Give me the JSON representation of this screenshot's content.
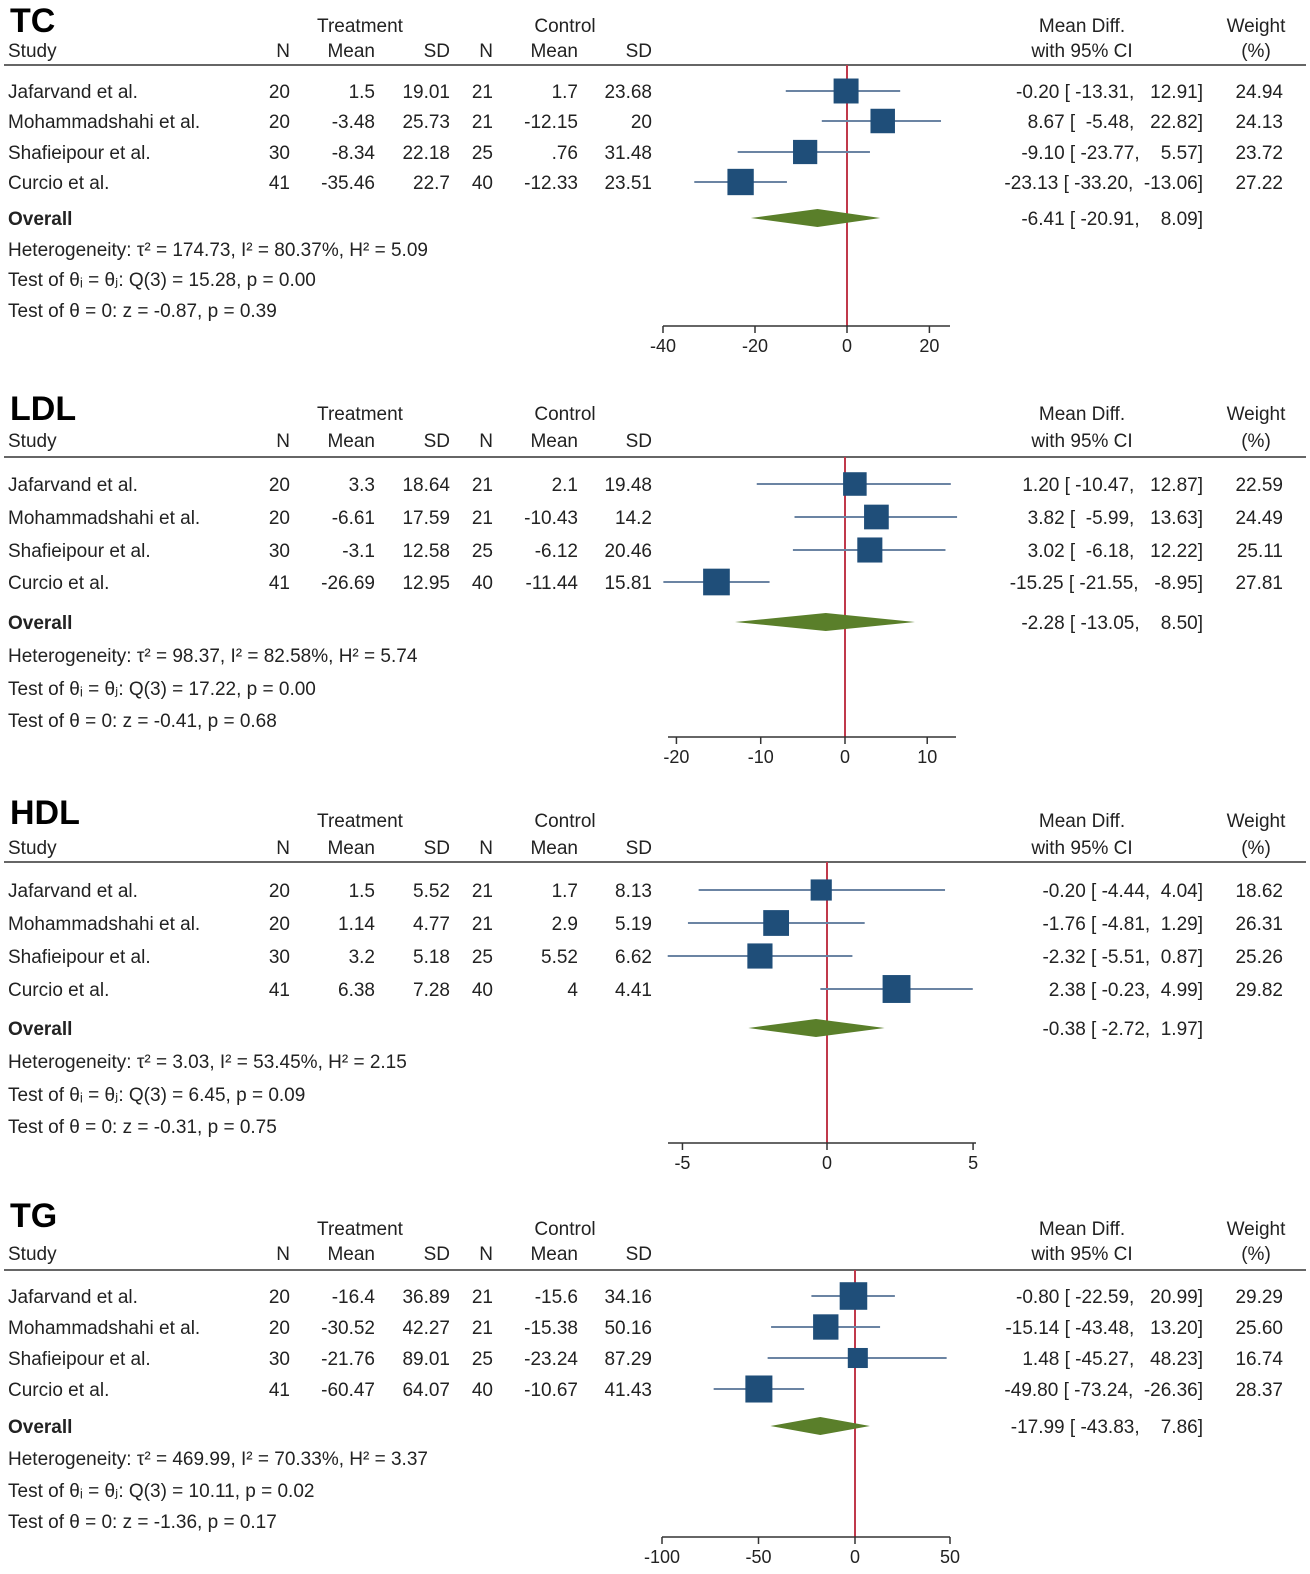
{
  "headers": {
    "study": "Study",
    "treatment": "Treatment",
    "control": "Control",
    "n": "N",
    "mean": "Mean",
    "sd": "SD",
    "mean_diff": "Mean Diff.",
    "ci": "with 95% CI",
    "weight": "Weight",
    "weight_unit": "(%)"
  },
  "colors": {
    "study_marker": "#1f4e79",
    "ci_line": "#6b84a3",
    "overall_diamond": "#5a7f2a",
    "null_line": "#c0394b"
  },
  "chart_data": [
    {
      "type": "forest",
      "title": "TC",
      "xlim": [
        -40,
        25
      ],
      "xticks": [
        -40,
        -20,
        0,
        20
      ],
      "xtick_labels": [
        "-40",
        "-20",
        "0",
        "20"
      ],
      "studies": [
        {
          "name": "Jafarvand et al.",
          "tN": "20",
          "tMean": "1.5",
          "tSD": "19.01",
          "cN": "21",
          "cMean": "1.7",
          "cSD": "23.68",
          "md": -0.2,
          "lo": -13.31,
          "hi": 12.91,
          "ci_text": "-0.20 [ -13.31,   12.91]",
          "weight": 24.94,
          "weight_text": "24.94"
        },
        {
          "name": "Mohammadshahi et al.",
          "tN": "20",
          "tMean": "-3.48",
          "tSD": "25.73",
          "cN": "21",
          "cMean": "-12.15",
          "cSD": "20",
          "md": 8.67,
          "lo": -5.48,
          "hi": 22.82,
          "ci_text": "8.67 [  -5.48,   22.82]",
          "weight": 24.13,
          "weight_text": "24.13"
        },
        {
          "name": "Shafieipour et al.",
          "tN": "30",
          "tMean": "-8.34",
          "tSD": "22.18",
          "cN": "25",
          "cMean": ".76",
          "cSD": "31.48",
          "md": -9.1,
          "lo": -23.77,
          "hi": 5.57,
          "ci_text": "-9.10 [ -23.77,    5.57]",
          "weight": 23.72,
          "weight_text": "23.72"
        },
        {
          "name": "Curcio et al.",
          "tN": "41",
          "tMean": "-35.46",
          "tSD": "22.7",
          "cN": "40",
          "cMean": "-12.33",
          "cSD": "23.51",
          "md": -23.13,
          "lo": -33.2,
          "hi": -13.06,
          "ci_text": "-23.13 [ -33.20,  -13.06]",
          "weight": 27.22,
          "weight_text": "27.22"
        }
      ],
      "overall": {
        "label": "Overall",
        "md": -6.41,
        "lo": -20.91,
        "hi": 8.09,
        "ci_text": "-6.41 [ -20.91,    8.09]"
      },
      "stats": [
        "Heterogeneity: τ² = 174.73, I² = 80.37%, H² = 5.09",
        "Test of θᵢ = θⱼ: Q(3) = 15.28, p = 0.00",
        "Test of θ = 0: z = -0.87, p = 0.39"
      ]
    },
    {
      "type": "forest",
      "title": "LDL",
      "xlim": [
        -21,
        13.5
      ],
      "xticks": [
        -20,
        -10,
        0,
        10
      ],
      "xtick_labels": [
        "-20",
        "-10",
        "0",
        "10"
      ],
      "studies": [
        {
          "name": "Jafarvand et al.",
          "tN": "20",
          "tMean": "3.3",
          "tSD": "18.64",
          "cN": "21",
          "cMean": "2.1",
          "cSD": "19.48",
          "md": 1.2,
          "lo": -10.47,
          "hi": 12.87,
          "ci_text": "1.20 [ -10.47,   12.87]",
          "weight": 22.59,
          "weight_text": "22.59"
        },
        {
          "name": "Mohammadshahi et al.",
          "tN": "20",
          "tMean": "-6.61",
          "tSD": "17.59",
          "cN": "21",
          "cMean": "-10.43",
          "cSD": "14.2",
          "md": 3.82,
          "lo": -5.99,
          "hi": 13.63,
          "ci_text": "3.82 [  -5.99,   13.63]",
          "weight": 24.49,
          "weight_text": "24.49"
        },
        {
          "name": "Shafieipour et al.",
          "tN": "30",
          "tMean": "-3.1",
          "tSD": "12.58",
          "cN": "25",
          "cMean": "-6.12",
          "cSD": "20.46",
          "md": 3.02,
          "lo": -6.18,
          "hi": 12.22,
          "ci_text": "3.02 [  -6.18,   12.22]",
          "weight": 25.11,
          "weight_text": "25.11"
        },
        {
          "name": "Curcio et al.",
          "tN": "41",
          "tMean": "-26.69",
          "tSD": "12.95",
          "cN": "40",
          "cMean": "-11.44",
          "cSD": "15.81",
          "md": -15.25,
          "lo": -21.55,
          "hi": -8.95,
          "ci_text": "-15.25 [ -21.55,   -8.95]",
          "weight": 27.81,
          "weight_text": "27.81"
        }
      ],
      "overall": {
        "label": "Overall",
        "md": -2.28,
        "lo": -13.05,
        "hi": 8.5,
        "ci_text": "-2.28 [ -13.05,    8.50]"
      },
      "stats": [
        "Heterogeneity: τ² = 98.37, I² = 82.58%, H² = 5.74",
        "Test of θᵢ = θⱼ: Q(3) = 17.22, p = 0.00",
        "Test of θ = 0: z = -0.41, p = 0.68"
      ]
    },
    {
      "type": "forest",
      "title": "HDL",
      "xlim": [
        -5.5,
        5.1
      ],
      "xticks": [
        -5,
        0,
        5
      ],
      "xtick_labels": [
        "-5",
        "0",
        "5"
      ],
      "studies": [
        {
          "name": "Jafarvand et al.",
          "tN": "20",
          "tMean": "1.5",
          "tSD": "5.52",
          "cN": "21",
          "cMean": "1.7",
          "cSD": "8.13",
          "md": -0.2,
          "lo": -4.44,
          "hi": 4.04,
          "ci_text": "-0.20 [ -4.44,  4.04]",
          "weight": 18.62,
          "weight_text": "18.62"
        },
        {
          "name": "Mohammadshahi et al.",
          "tN": "20",
          "tMean": "1.14",
          "tSD": "4.77",
          "cN": "21",
          "cMean": "2.9",
          "cSD": "5.19",
          "md": -1.76,
          "lo": -4.81,
          "hi": 1.29,
          "ci_text": "-1.76 [ -4.81,  1.29]",
          "weight": 26.31,
          "weight_text": "26.31"
        },
        {
          "name": "Shafieipour et al.",
          "tN": "30",
          "tMean": "3.2",
          "tSD": "5.18",
          "cN": "25",
          "cMean": "5.52",
          "cSD": "6.62",
          "md": -2.32,
          "lo": -5.51,
          "hi": 0.87,
          "ci_text": "-2.32 [ -5.51,  0.87]",
          "weight": 25.26,
          "weight_text": "25.26"
        },
        {
          "name": "Curcio et al.",
          "tN": "41",
          "tMean": "6.38",
          "tSD": "7.28",
          "cN": "40",
          "cMean": "4",
          "cSD": "4.41",
          "md": 2.38,
          "lo": -0.23,
          "hi": 4.99,
          "ci_text": "2.38 [ -0.23,  4.99]",
          "weight": 29.82,
          "weight_text": "29.82"
        }
      ],
      "overall": {
        "label": "Overall",
        "md": -0.38,
        "lo": -2.72,
        "hi": 1.97,
        "ci_text": "-0.38 [ -2.72,  1.97]"
      },
      "stats": [
        "Heterogeneity: τ² = 3.03, I² = 53.45%, H² = 2.15",
        "Test of θᵢ = θⱼ: Q(3) = 6.45, p = 0.09",
        "Test of θ = 0: z = -0.31, p = 0.75"
      ]
    },
    {
      "type": "forest",
      "title": "TG",
      "xlim": [
        -100,
        50
      ],
      "xticks": [
        -100,
        -50,
        0,
        50
      ],
      "xtick_labels": [
        "-100",
        "-50",
        "0",
        "50"
      ],
      "studies": [
        {
          "name": "Jafarvand et al.",
          "tN": "20",
          "tMean": "-16.4",
          "tSD": "36.89",
          "cN": "21",
          "cMean": "-15.6",
          "cSD": "34.16",
          "md": -0.8,
          "lo": -22.59,
          "hi": 20.99,
          "ci_text": "-0.80 [ -22.59,   20.99]",
          "weight": 29.29,
          "weight_text": "29.29"
        },
        {
          "name": "Mohammadshahi et al.",
          "tN": "20",
          "tMean": "-30.52",
          "tSD": "42.27",
          "cN": "21",
          "cMean": "-15.38",
          "cSD": "50.16",
          "md": -15.14,
          "lo": -43.48,
          "hi": 13.2,
          "ci_text": "-15.14 [ -43.48,   13.20]",
          "weight": 25.6,
          "weight_text": "25.60"
        },
        {
          "name": "Shafieipour et al.",
          "tN": "30",
          "tMean": "-21.76",
          "tSD": "89.01",
          "cN": "25",
          "cMean": "-23.24",
          "cSD": "87.29",
          "md": 1.48,
          "lo": -45.27,
          "hi": 48.23,
          "ci_text": "1.48 [ -45.27,   48.23]",
          "weight": 16.74,
          "weight_text": "16.74"
        },
        {
          "name": "Curcio et al.",
          "tN": "41",
          "tMean": "-60.47",
          "tSD": "64.07",
          "cN": "40",
          "cMean": "-10.67",
          "cSD": "41.43",
          "md": -49.8,
          "lo": -73.24,
          "hi": -26.36,
          "ci_text": "-49.80 [ -73.24,  -26.36]",
          "weight": 28.37,
          "weight_text": "28.37"
        }
      ],
      "overall": {
        "label": "Overall",
        "md": -17.99,
        "lo": -43.83,
        "hi": 7.86,
        "ci_text": "-17.99 [ -43.83,    7.86]"
      },
      "stats": [
        "Heterogeneity: τ² = 469.99, I² = 70.33%, H² = 3.37",
        "Test of θᵢ = θⱼ: Q(3) = 10.11, p = 0.02",
        "Test of θ = 0: z = -1.36, p = 0.17"
      ]
    }
  ]
}
